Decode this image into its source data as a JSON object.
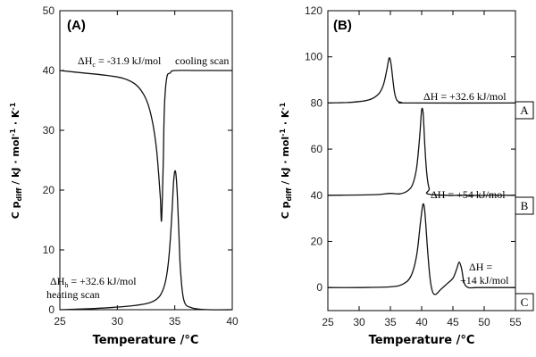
{
  "chart_data": [
    {
      "panel": "(A)",
      "type": "line",
      "xlabel": "Temperature /°C",
      "ylabel": "Cp diff / kJ · mol⁻¹ · K⁻¹",
      "xlim": [
        25,
        40
      ],
      "ylim": [
        0,
        50
      ],
      "xticks": [
        25,
        30,
        35,
        40
      ],
      "yticks": [
        0,
        10,
        20,
        30,
        40,
        50
      ],
      "series": [
        {
          "name": "cooling scan",
          "x": [
            25,
            27,
            29,
            30.5,
            31.5,
            32.2,
            32.7,
            33.1,
            33.4,
            33.6,
            33.75,
            33.85,
            34.0,
            34.1,
            34.3,
            34.6,
            35,
            37,
            40
          ],
          "y": [
            40,
            39.6,
            39.2,
            38.7,
            37.8,
            36.3,
            34.2,
            31,
            27,
            22.5,
            18.5,
            15,
            25,
            34,
            38.8,
            39.6,
            40,
            40,
            40
          ]
        },
        {
          "name": "heating scan",
          "x": [
            25,
            28,
            31,
            32.5,
            33.3,
            33.8,
            34.2,
            34.5,
            34.75,
            34.9,
            35.05,
            35.2,
            35.35,
            35.5,
            35.8,
            36.5,
            38,
            40
          ],
          "y": [
            0,
            0.2,
            0.6,
            1.0,
            1.6,
            2.6,
            4.8,
            9,
            16,
            21.5,
            23.2,
            20,
            13,
            6.5,
            1.5,
            0.3,
            0,
            0
          ]
        }
      ],
      "annotations": [
        {
          "text": "ΔHc = -31.9 kJ/mol"
        },
        {
          "text": "cooling scan"
        },
        {
          "text": "ΔHh = +32.6 kJ/mol"
        },
        {
          "text": "heating scan"
        }
      ]
    },
    {
      "panel": "(B)",
      "type": "line",
      "xlabel": "Temperature /°C",
      "ylabel": "Cp diff / kJ · mol⁻¹ · K⁻¹",
      "xlim": [
        25,
        55
      ],
      "ylim": [
        -10,
        120
      ],
      "xticks": [
        25,
        30,
        35,
        40,
        45,
        50,
        55
      ],
      "yticks": [
        0,
        20,
        40,
        60,
        80,
        100,
        120
      ],
      "series": [
        {
          "name": "A",
          "x": [
            25,
            28,
            30,
            31.5,
            32.5,
            33.3,
            33.9,
            34.4,
            34.8,
            35.1,
            35.4,
            35.7,
            36.1,
            36.8,
            38,
            55
          ],
          "y": [
            80,
            80.2,
            80.6,
            81.3,
            82.5,
            84.5,
            88,
            94,
            99.5,
            97,
            90,
            84,
            81,
            80.2,
            80,
            80
          ]
        },
        {
          "name": "B",
          "x": [
            25,
            30,
            33,
            35,
            36.5,
            37.8,
            38.6,
            39.2,
            39.7,
            40.0,
            40.25,
            40.5,
            40.8,
            41.2,
            42,
            55
          ],
          "y": [
            40,
            40.1,
            40.3,
            40.8,
            40.6,
            42,
            45,
            52,
            66,
            77,
            75,
            62,
            50,
            43,
            40.2,
            40
          ]
        },
        {
          "name": "C",
          "x": [
            25,
            30,
            35,
            37,
            38.3,
            39.2,
            39.8,
            40.2,
            40.5,
            40.9,
            41.3,
            41.7,
            42.2,
            43,
            44,
            45,
            45.6,
            46.0,
            46.4,
            46.8,
            47.5,
            49,
            55
          ],
          "y": [
            0,
            0,
            0.3,
            1.5,
            5,
            14,
            28,
            36,
            33,
            18,
            5,
            -1.5,
            -3,
            -1,
            1.5,
            4,
            8,
            11,
            8,
            2,
            0,
            0,
            0
          ]
        }
      ],
      "annotations": [
        {
          "text": "ΔH = +32.6 kJ/mol"
        },
        {
          "text": "ΔH = +54 kJ/mol"
        },
        {
          "text": "ΔH ="
        },
        {
          "text": "+14 kJ/mol"
        }
      ],
      "curve_labels": [
        "A",
        "B",
        "C"
      ]
    }
  ]
}
